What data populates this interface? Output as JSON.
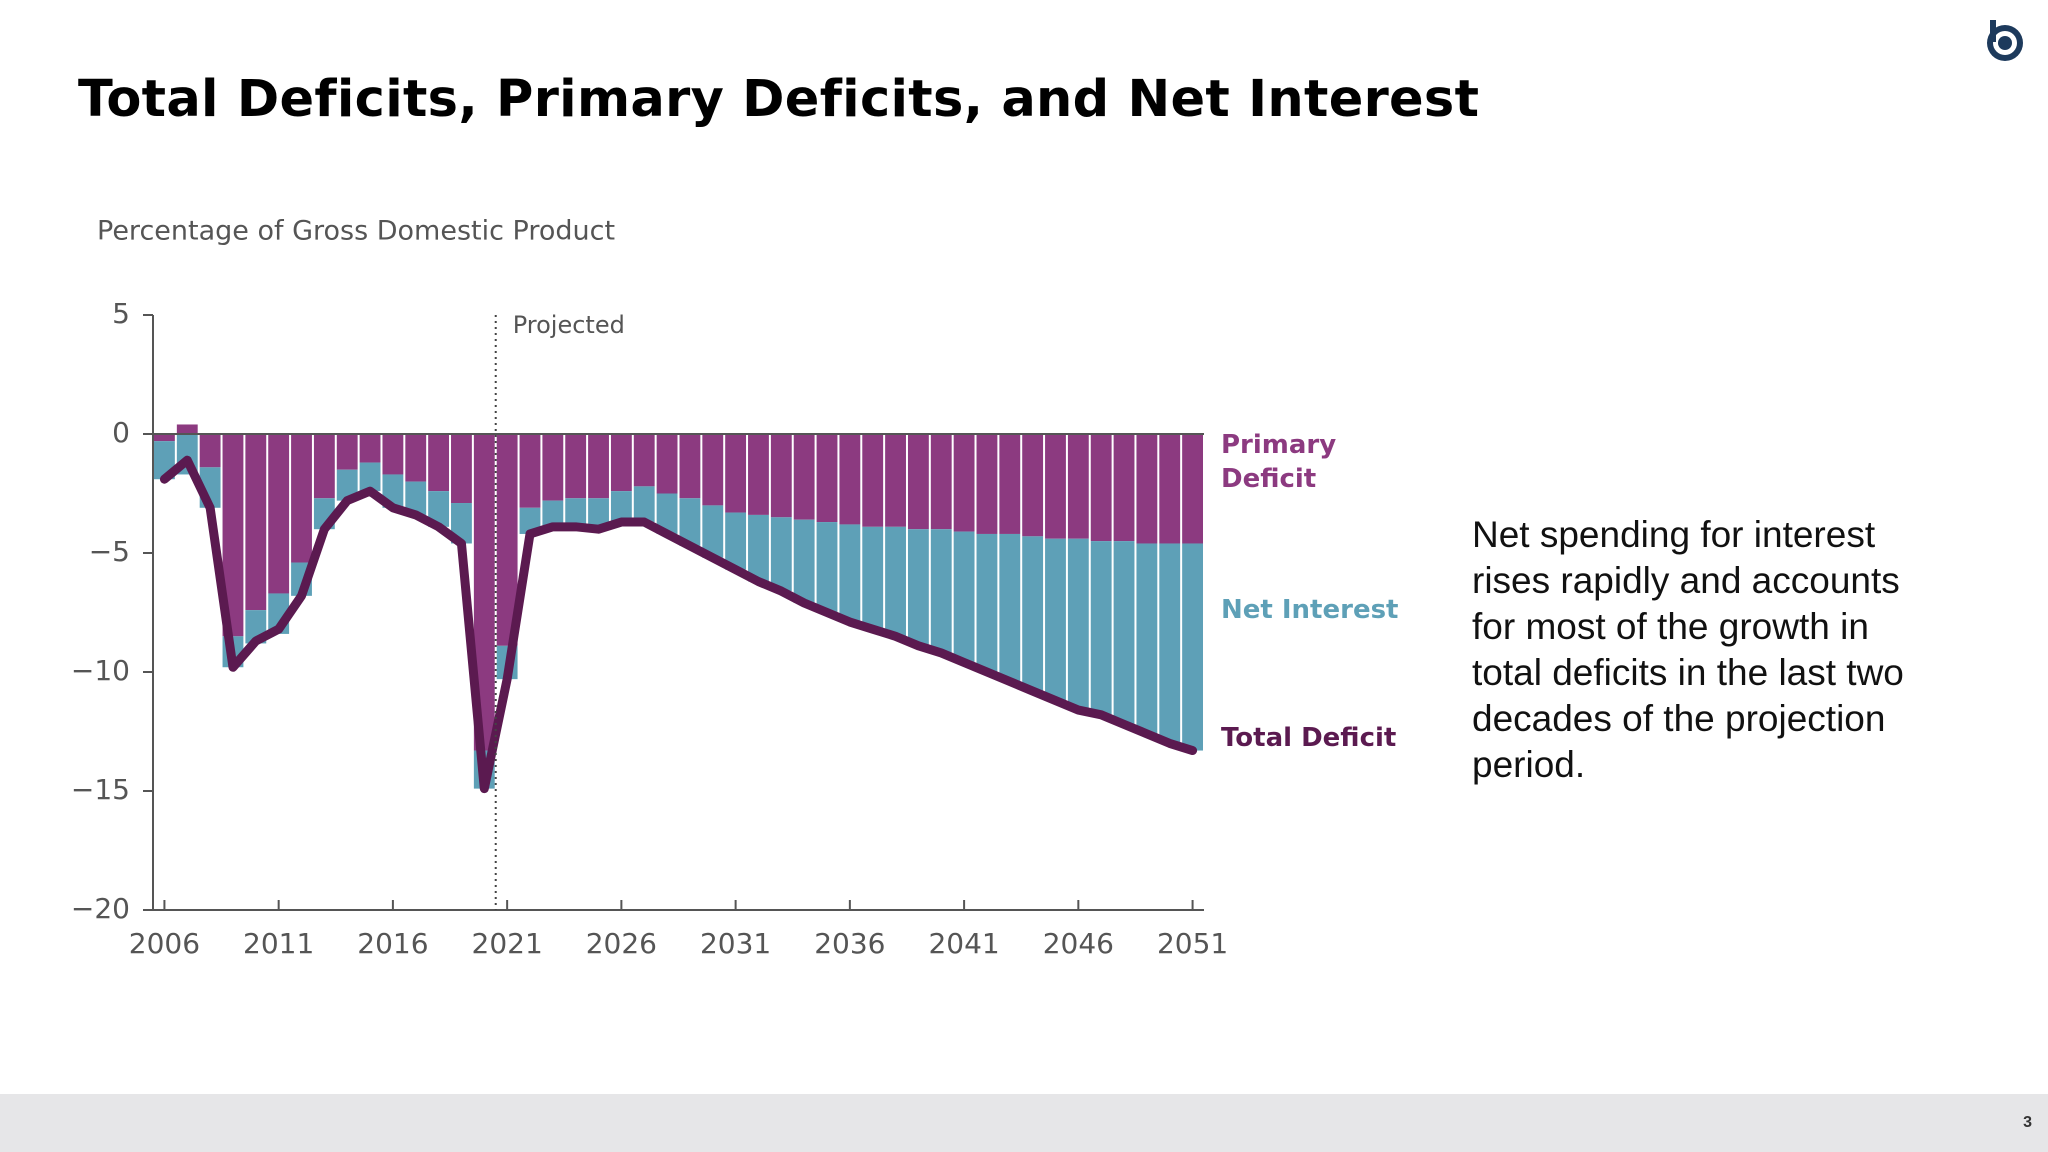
{
  "chart_data": {
    "type": "stacked_bar_line",
    "title": "Total Deficits, Primary Deficits, and Net Interest",
    "ylabel": "Percentage of Gross Domestic Product",
    "annotation": {
      "text": "Projected",
      "x": 2020.5
    },
    "x": [
      2006,
      2007,
      2008,
      2009,
      2010,
      2011,
      2012,
      2013,
      2014,
      2015,
      2016,
      2017,
      2018,
      2019,
      2020,
      2021,
      2022,
      2023,
      2024,
      2025,
      2026,
      2027,
      2028,
      2029,
      2030,
      2031,
      2032,
      2033,
      2034,
      2035,
      2036,
      2037,
      2038,
      2039,
      2040,
      2041,
      2042,
      2043,
      2044,
      2045,
      2046,
      2047,
      2048,
      2049,
      2050,
      2051
    ],
    "series": [
      {
        "name": "Primary Deficit",
        "color": "#8c3a80",
        "kind": "bar",
        "values": [
          -0.3,
          0.4,
          -1.4,
          -8.5,
          -7.4,
          -6.7,
          -5.4,
          -2.7,
          -1.5,
          -1.2,
          -1.7,
          -2.0,
          -2.4,
          -2.9,
          -13.3,
          -8.9,
          -3.1,
          -2.8,
          -2.7,
          -2.7,
          -2.4,
          -2.2,
          -2.5,
          -2.7,
          -3.0,
          -3.3,
          -3.4,
          -3.5,
          -3.6,
          -3.7,
          -3.8,
          -3.9,
          -3.9,
          -4.0,
          -4.0,
          -4.1,
          -4.2,
          -4.2,
          -4.3,
          -4.4,
          -4.4,
          -4.5,
          -4.5,
          -4.6,
          -4.6,
          -4.6
        ]
      },
      {
        "name": "Net Interest",
        "color": "#5ea0b7",
        "kind": "bar",
        "values": [
          -1.6,
          -1.7,
          -1.7,
          -1.3,
          -1.4,
          -1.7,
          -1.4,
          -1.3,
          -1.3,
          -1.2,
          -1.4,
          -1.4,
          -1.5,
          -1.7,
          -1.6,
          -1.4,
          -1.1,
          -1.1,
          -1.2,
          -1.3,
          -1.3,
          -1.5,
          -1.7,
          -2.0,
          -2.2,
          -2.4,
          -2.8,
          -3.1,
          -3.5,
          -3.8,
          -4.1,
          -4.3,
          -4.6,
          -4.9,
          -5.2,
          -5.5,
          -5.8,
          -6.2,
          -6.5,
          -6.8,
          -7.2,
          -7.3,
          -7.7,
          -8.0,
          -8.4,
          -8.7
        ]
      },
      {
        "name": "Total Deficit",
        "color": "#5b1a50",
        "kind": "line",
        "values": [
          -1.9,
          -1.1,
          -3.1,
          -9.8,
          -8.7,
          -8.2,
          -6.8,
          -4.0,
          -2.8,
          -2.4,
          -3.1,
          -3.4,
          -3.9,
          -4.6,
          -14.9,
          -10.3,
          -4.2,
          -3.9,
          -3.9,
          -4.0,
          -3.7,
          -3.7,
          -4.2,
          -4.7,
          -5.2,
          -5.7,
          -6.2,
          -6.6,
          -7.1,
          -7.5,
          -7.9,
          -8.2,
          -8.5,
          -8.9,
          -9.2,
          -9.6,
          -10.0,
          -10.4,
          -10.8,
          -11.2,
          -11.6,
          -11.8,
          -12.2,
          -12.6,
          -13.0,
          -13.3
        ]
      }
    ],
    "xlim": [
      2005.5,
      2051.5
    ],
    "xticks": [
      2006,
      2011,
      2016,
      2021,
      2026,
      2031,
      2036,
      2041,
      2046,
      2051
    ],
    "ylim": [
      -20,
      5
    ],
    "yticks": [
      {
        "value": -20,
        "label": "−20"
      },
      {
        "value": -15,
        "label": "−15"
      },
      {
        "value": -10,
        "label": "−10"
      },
      {
        "value": -5,
        "label": "−5"
      },
      0,
      5
    ],
    "grid": false
  },
  "note": "Net spending for interest rises rapidly and accounts for most of the growth in total deficits in the last two decades of the projection period.",
  "page_number": "3"
}
